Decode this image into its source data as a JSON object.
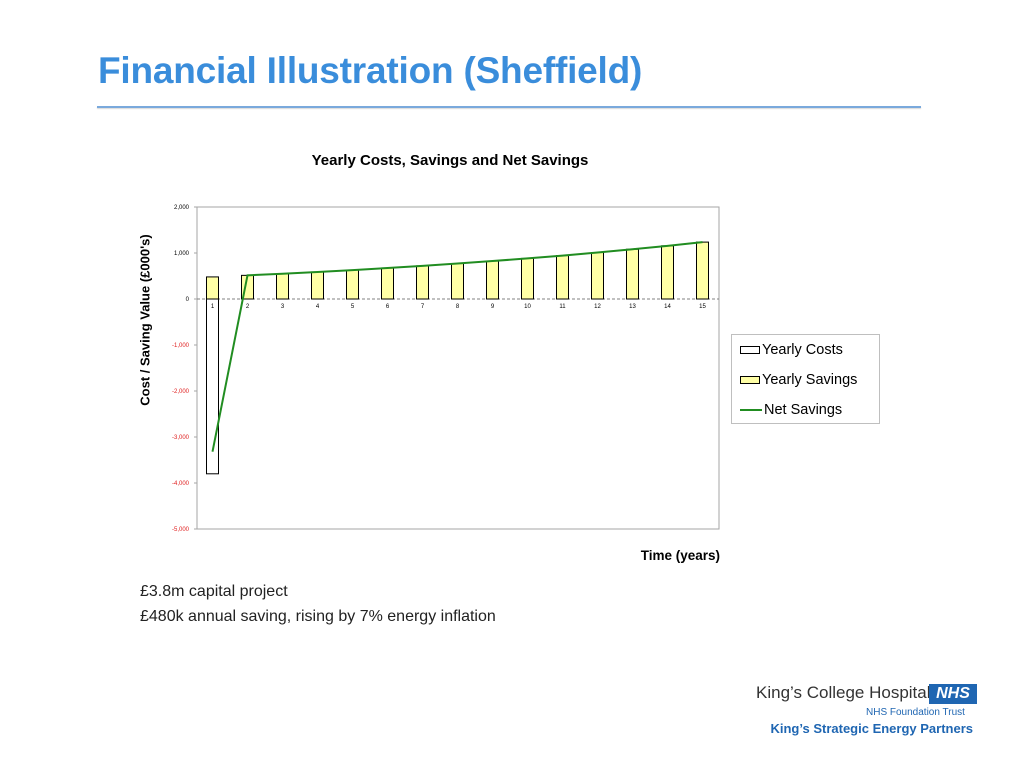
{
  "slide": {
    "title": "Financial Illustration (Sheffield)"
  },
  "notes": [
    "£3.8m capital project",
    "£480k annual saving, rising by 7% energy inflation"
  ],
  "logo": {
    "name": "King’s College Hospital",
    "badge": "NHS",
    "trust": "NHS Foundation Trust"
  },
  "footer": {
    "partners": "King’s Strategic Energy Partners"
  },
  "colors": {
    "title": "#3a8ddb",
    "savings_bar": "#ffffa6",
    "net_line": "#218d21",
    "negative_tick": "#e02020",
    "nhs_blue": "#1f66b2"
  },
  "chart_data": {
    "type": "bar",
    "title": "Yearly Costs, Savings and Net Savings",
    "xlabel": "Time (years)",
    "ylabel": "Cost / Saving Value (£000's)",
    "ylim": [
      -5000,
      2000
    ],
    "yticks": [
      "2,000",
      "1,000",
      "0",
      "-1,000",
      "-2,000",
      "-3,000",
      "-4,000",
      "-5,000"
    ],
    "ytick_values": [
      2000,
      1000,
      0,
      -1000,
      -2000,
      -3000,
      -4000,
      -5000
    ],
    "categories": [
      "1",
      "2",
      "3",
      "4",
      "5",
      "6",
      "7",
      "8",
      "9",
      "10",
      "11",
      "12",
      "13",
      "14",
      "15"
    ],
    "grid": false,
    "legend_position": "right",
    "legend": [
      "Yearly Costs",
      "Yearly Savings",
      "Net Savings"
    ],
    "series": [
      {
        "name": "Yearly Costs",
        "type": "bar",
        "values": [
          -3800,
          0,
          0,
          0,
          0,
          0,
          0,
          0,
          0,
          0,
          0,
          0,
          0,
          0,
          0
        ]
      },
      {
        "name": "Yearly Savings",
        "type": "bar",
        "values": [
          480,
          514,
          549,
          588,
          629,
          673,
          720,
          771,
          825,
          882,
          944,
          1010,
          1081,
          1156,
          1237
        ]
      },
      {
        "name": "Net Savings",
        "type": "line",
        "values": [
          -3320,
          514,
          549,
          588,
          629,
          673,
          720,
          771,
          825,
          882,
          944,
          1010,
          1081,
          1156,
          1237
        ]
      }
    ]
  }
}
